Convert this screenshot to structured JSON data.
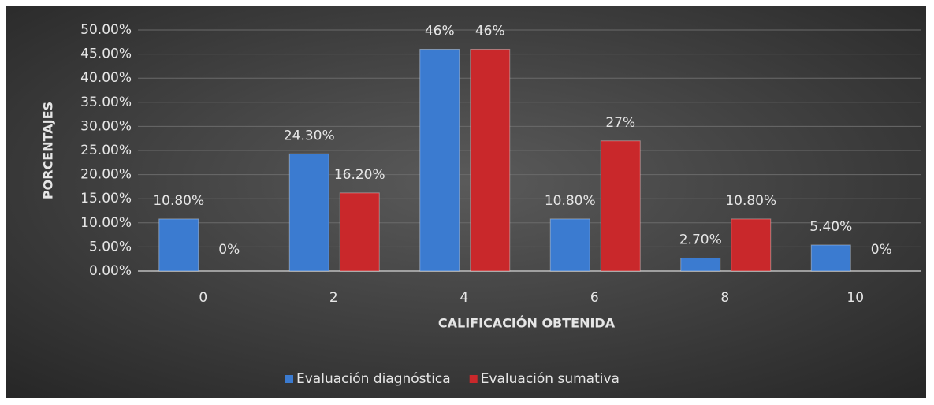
{
  "chart_data": {
    "type": "bar",
    "x_label": "CALIFICACIÓN OBTENIDA",
    "y_label": "PORCENTAJES",
    "categories": [
      "0",
      "2",
      "4",
      "6",
      "8",
      "10"
    ],
    "series": [
      {
        "name": "Evaluación diagnóstica",
        "color": "#3b7bd0",
        "values": [
          10.8,
          24.3,
          46,
          10.8,
          2.7,
          5.4
        ],
        "value_labels": [
          "10.80%",
          "24.30%",
          "46%",
          "10.80%",
          "2.70%",
          "5.40%"
        ]
      },
      {
        "name": "Evaluación sumativa",
        "color": "#c9282b",
        "values": [
          0,
          16.2,
          46,
          27,
          10.8,
          0
        ],
        "value_labels": [
          "0%",
          "16.20%",
          "46%",
          "27%",
          "10.80%",
          "0%"
        ]
      }
    ],
    "ylim": [
      0,
      50
    ],
    "yticks": [
      {
        "value": 0,
        "label": "0.00%"
      },
      {
        "value": 5,
        "label": "5.00%"
      },
      {
        "value": 10,
        "label": "10.00%"
      },
      {
        "value": 15,
        "label": "15.00%"
      },
      {
        "value": 20,
        "label": "20.00%"
      },
      {
        "value": 25,
        "label": "25.00%"
      },
      {
        "value": 30,
        "label": "30.00%"
      },
      {
        "value": 35,
        "label": "35.00%"
      },
      {
        "value": 40,
        "label": "40.00%"
      },
      {
        "value": 45,
        "label": "45.00%"
      },
      {
        "value": 50,
        "label": "50.00%"
      }
    ],
    "grid": true,
    "legend": "bottom"
  }
}
